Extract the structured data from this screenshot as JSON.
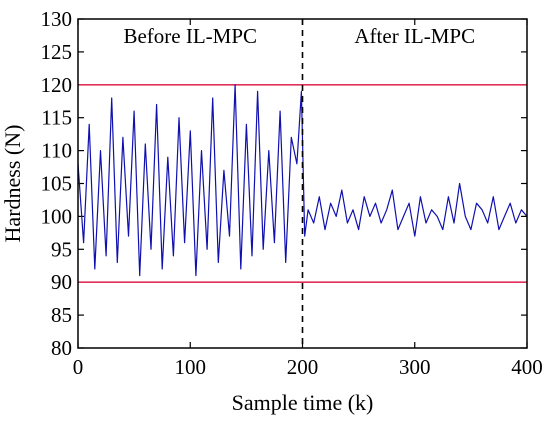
{
  "chart_data": {
    "type": "line",
    "xlabel": "Sample time (k)",
    "ylabel": "Hardness (N)",
    "xlim": [
      0,
      400
    ],
    "ylim": [
      80,
      130
    ],
    "xticks": [
      0,
      100,
      200,
      300,
      400
    ],
    "yticks": [
      80,
      85,
      90,
      95,
      100,
      105,
      110,
      115,
      120,
      125,
      130
    ],
    "grid": false,
    "limits": {
      "upper": 120,
      "lower": 90,
      "color": "#e0305a"
    },
    "divider": {
      "x": 200,
      "style": "dashed"
    },
    "annotations": {
      "before": "Before IL-MPC",
      "after": "After IL-MPC"
    },
    "series": [
      {
        "color": "#1010b0",
        "x": [
          0,
          5,
          10,
          15,
          20,
          25,
          30,
          35,
          40,
          45,
          50,
          55,
          60,
          65,
          70,
          75,
          80,
          85,
          90,
          95,
          100,
          105,
          110,
          115,
          120,
          125,
          130,
          135,
          140,
          145,
          150,
          155,
          160,
          165,
          170,
          175,
          180,
          185,
          190,
          195,
          199,
          202,
          205,
          210,
          215,
          220,
          225,
          230,
          235,
          240,
          245,
          250,
          255,
          260,
          265,
          270,
          275,
          280,
          285,
          290,
          295,
          300,
          305,
          310,
          315,
          320,
          325,
          330,
          335,
          340,
          345,
          350,
          355,
          360,
          365,
          370,
          375,
          380,
          385,
          390,
          395,
          400
        ],
        "y": [
          108,
          96,
          114,
          92,
          110,
          94,
          118,
          93,
          112,
          97,
          116,
          91,
          111,
          95,
          117,
          92,
          109,
          94,
          115,
          96,
          113,
          91,
          110,
          95,
          118,
          93,
          107,
          97,
          120,
          92,
          114,
          94,
          119,
          95,
          110,
          96,
          116,
          93,
          112,
          108,
          119,
          97,
          101,
          99,
          103,
          98,
          102,
          100,
          104,
          99,
          101,
          98,
          103,
          100,
          102,
          99,
          101,
          104,
          98,
          100,
          102,
          97,
          103,
          99,
          101,
          100,
          98,
          103,
          99,
          105,
          100,
          98,
          102,
          101,
          99,
          103,
          98,
          100,
          102,
          99,
          101,
          100
        ]
      }
    ]
  }
}
